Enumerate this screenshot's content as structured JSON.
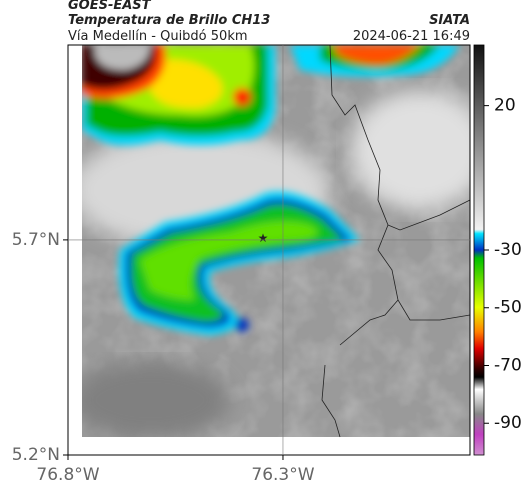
{
  "header": {
    "satellite": "GOES-EAST",
    "product": "Temperatura de Brillo CH13",
    "route": "Vía Medellín - Quibdó 50km",
    "source": "SIATA",
    "timestamp": "2024-06-21 16:49"
  },
  "map": {
    "xlim": [
      -76.8,
      -75.865
    ],
    "ylim": [
      5.2,
      6.153
    ],
    "xticks": [
      {
        "value": -76.8,
        "label": "76.8°W"
      },
      {
        "value": -76.3,
        "label": "76.3°W"
      }
    ],
    "yticks": [
      {
        "value": 5.2,
        "label": "5.2°N"
      },
      {
        "value": 5.7,
        "label": "5.7°N"
      }
    ],
    "grid": true
  },
  "colorbar": {
    "lim": [
      -101,
      41
    ],
    "ticks": [
      20,
      -30,
      -50,
      -70,
      -90
    ]
  }
}
